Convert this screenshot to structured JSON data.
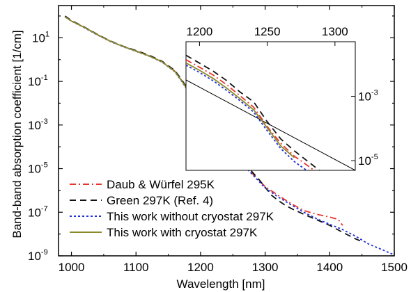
{
  "chart_data": {
    "type": "line",
    "title": "",
    "xlabel": "Wavelength [nm]",
    "ylabel": "Band-band absorption coefficient [1/cm]",
    "x_axis": {
      "range": [
        980,
        1500
      ],
      "tick_labels": [
        "1000",
        "1100",
        "1200",
        "1300",
        "1400",
        "1500"
      ],
      "tick_values": [
        1000,
        1100,
        1200,
        1300,
        1400,
        1500
      ]
    },
    "y_axis": {
      "scale": "log",
      "range": [
        1e-09,
        300
      ],
      "tick_labels": [
        {
          "base": "10",
          "exp": "1",
          "value": 10
        },
        {
          "base": "10",
          "exp": "-1",
          "value": 0.1
        },
        {
          "base": "10",
          "exp": "-3",
          "value": 0.001
        },
        {
          "base": "10",
          "exp": "-5",
          "value": 1e-05
        },
        {
          "base": "10",
          "exp": "-7",
          "value": 1e-07
        },
        {
          "base": "10",
          "exp": "-9",
          "value": 1e-09
        }
      ]
    },
    "legend": {
      "position": "bottom-left"
    },
    "series": [
      {
        "name": "Daub & Würfel 295K",
        "color": "#e8352c",
        "dash": "dash-dot",
        "x": [
          990,
          1000,
          1020,
          1040,
          1060,
          1080,
          1100,
          1120,
          1140,
          1160,
          1170,
          1180,
          1190,
          1200,
          1210,
          1220,
          1230,
          1240,
          1250,
          1260,
          1270,
          1280,
          1290,
          1300,
          1320,
          1340,
          1360,
          1380,
          1400,
          1410,
          1415,
          1420
        ],
        "y": [
          95,
          60,
          30,
          14,
          7,
          4,
          2.5,
          1.5,
          0.8,
          0.3,
          0.12,
          0.04,
          0.012,
          0.007,
          0.004,
          0.002,
          0.0009,
          0.0004,
          0.0001,
          3e-05,
          1.2e-05,
          6e-06,
          3e-06,
          1.5e-06,
          6e-07,
          2.5e-07,
          1.2e-07,
          8e-08,
          6e-08,
          5e-08,
          4e-08,
          2.5e-08
        ]
      },
      {
        "name": "Green 297K (Ref. 4)",
        "color": "#111111",
        "dash": "dash",
        "x": [
          990,
          1000,
          1020,
          1040,
          1060,
          1080,
          1100,
          1120,
          1140,
          1160,
          1170,
          1180,
          1190,
          1200,
          1210,
          1220,
          1230,
          1240,
          1250,
          1260,
          1270,
          1280,
          1290,
          1300,
          1310,
          1320,
          1330,
          1340,
          1350,
          1360,
          1380,
          1400,
          1420,
          1440,
          1450
        ],
        "y": [
          100,
          62,
          31,
          14.5,
          7.2,
          4.1,
          2.6,
          1.6,
          0.85,
          0.32,
          0.13,
          0.045,
          0.014,
          0.008,
          0.0045,
          0.0023,
          0.001,
          0.0005,
          0.00012,
          3.5e-05,
          1.5e-05,
          7e-06,
          3.3e-06,
          1.4e-06,
          6e-07,
          3.5e-07,
          2.2e-07,
          1.5e-07,
          1.1e-07,
          8e-08,
          4.5e-08,
          2.5e-08,
          1.2e-08,
          6e-09,
          4.5e-09
        ]
      },
      {
        "name": "This work without cryostat 297K",
        "color": "#1f2fd8",
        "dash": "dot",
        "x": [
          990,
          1000,
          1020,
          1040,
          1060,
          1080,
          1100,
          1120,
          1140,
          1160,
          1170,
          1180,
          1190,
          1200,
          1210,
          1220,
          1230,
          1240,
          1250,
          1260,
          1270,
          1280,
          1290,
          1300,
          1320,
          1340,
          1360,
          1380,
          1400,
          1420,
          1440,
          1460,
          1480,
          1500
        ],
        "y": [
          90,
          58,
          29,
          13.5,
          6.8,
          3.9,
          2.4,
          1.45,
          0.78,
          0.28,
          0.11,
          0.038,
          0.011,
          0.0065,
          0.0036,
          0.0018,
          0.00085,
          0.00038,
          0.0001,
          2.8e-05,
          1.1e-05,
          5.5e-06,
          2.7e-06,
          1.3e-06,
          5e-07,
          2.2e-07,
          1e-07,
          5e-08,
          2.8e-08,
          1.6e-08,
          8e-09,
          3.5e-09,
          2e-09,
          1.1e-09
        ]
      },
      {
        "name": "This work with cryostat 297K",
        "color": "#8a8a2a",
        "dash": "solid",
        "x": [
          990,
          1000,
          1020,
          1040,
          1060,
          1080,
          1100,
          1120,
          1140,
          1160,
          1170,
          1180,
          1190,
          1200,
          1210,
          1220,
          1230,
          1240,
          1250,
          1260,
          1270
        ],
        "y": [
          92,
          59,
          30,
          14,
          7,
          4,
          2.45,
          1.48,
          0.8,
          0.29,
          0.115,
          0.04,
          0.0115,
          0.0068,
          0.0038,
          0.0019,
          0.00088,
          0.0004,
          0.00011,
          3e-05,
          1.3e-05
        ]
      }
    ],
    "inset": {
      "x_tick_labels": [
        "1200",
        "1250",
        "1300"
      ],
      "x_tick_values": [
        1200,
        1250,
        1300
      ],
      "x_range": [
        1190,
        1315
      ],
      "y_range": [
        5e-06,
        0.05
      ],
      "y_tick_labels": [
        {
          "base": "10",
          "exp": "-3",
          "value": 0.001
        },
        {
          "base": "10",
          "exp": "-5",
          "value": 1e-05
        }
      ]
    }
  }
}
